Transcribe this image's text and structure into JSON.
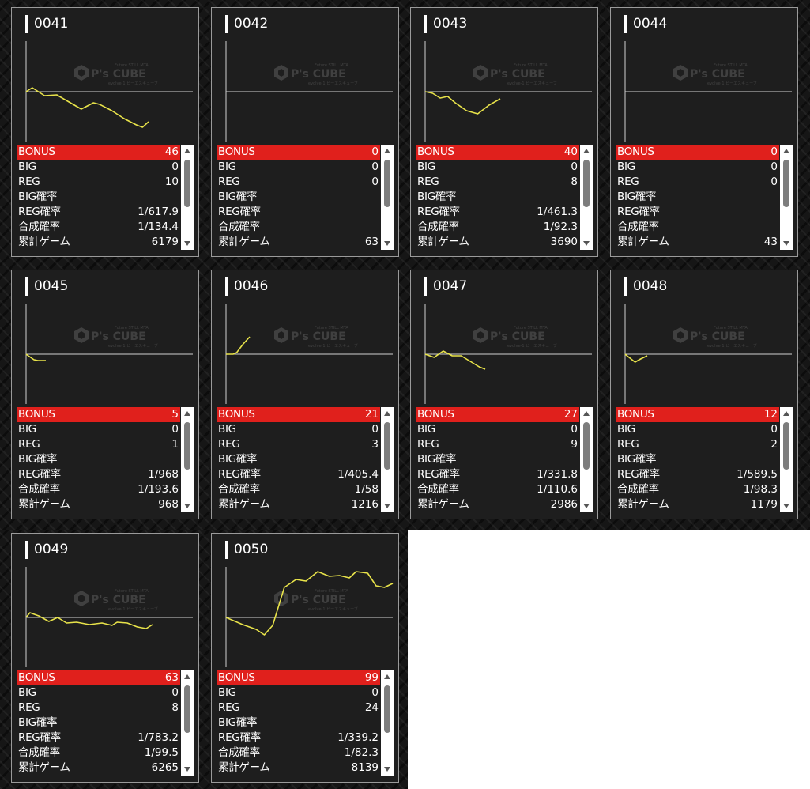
{
  "labels": {
    "bonus": "BONUS",
    "big": "BIG",
    "reg": "REG",
    "big_rate": "BIG確率",
    "reg_rate": "REG確率",
    "combined_rate": "合成確率",
    "total_games": "累計ゲーム"
  },
  "watermark": {
    "small_top": "Future STILL MTA",
    "brand": "P's CUBE",
    "small_bottom": "evolve-1 ピーエスキューブ"
  },
  "colors": {
    "accent_red": "#e0201c",
    "line_yellow": "#e8e34a",
    "card_bg": "#1e1e1e",
    "border": "#9a9a9a"
  },
  "machines": [
    {
      "id": "0041",
      "bonus": "46",
      "big": "0",
      "reg": "10",
      "big_rate": "",
      "reg_rate": "1/617.9",
      "combined_rate": "1/134.4",
      "total_games": "6179",
      "chart_data": {
        "type": "line",
        "points": [
          [
            0,
            0
          ],
          [
            0.05,
            5
          ],
          [
            0.15,
            -5
          ],
          [
            0.25,
            -4
          ],
          [
            0.35,
            -13
          ],
          [
            0.45,
            -22
          ],
          [
            0.55,
            -14
          ],
          [
            0.6,
            -16
          ],
          [
            0.7,
            -24
          ],
          [
            0.8,
            -34
          ],
          [
            0.9,
            -42
          ],
          [
            0.95,
            -45
          ],
          [
            1,
            -38
          ]
        ]
      }
    },
    {
      "id": "0042",
      "bonus": "0",
      "big": "0",
      "reg": "0",
      "big_rate": "",
      "reg_rate": "",
      "combined_rate": "",
      "total_games": "63",
      "chart_data": {
        "type": "line",
        "points": [
          [
            0,
            0
          ],
          [
            0.02,
            0
          ]
        ]
      }
    },
    {
      "id": "0043",
      "bonus": "40",
      "big": "0",
      "reg": "8",
      "big_rate": "",
      "reg_rate": "1/461.3",
      "combined_rate": "1/92.3",
      "total_games": "3690",
      "chart_data": {
        "type": "line",
        "points": [
          [
            0,
            0
          ],
          [
            0.1,
            -2
          ],
          [
            0.2,
            -8
          ],
          [
            0.3,
            -6
          ],
          [
            0.4,
            -14
          ],
          [
            0.55,
            -24
          ],
          [
            0.7,
            -28
          ],
          [
            0.85,
            -17
          ],
          [
            1,
            -9
          ]
        ]
      }
    },
    {
      "id": "0044",
      "bonus": "0",
      "big": "0",
      "reg": "0",
      "big_rate": "",
      "reg_rate": "",
      "combined_rate": "",
      "total_games": "43",
      "chart_data": {
        "type": "line",
        "points": [
          [
            0,
            0
          ],
          [
            0.02,
            0
          ]
        ]
      }
    },
    {
      "id": "0045",
      "bonus": "5",
      "big": "0",
      "reg": "1",
      "big_rate": "",
      "reg_rate": "1/968",
      "combined_rate": "1/193.6",
      "total_games": "968",
      "chart_data": {
        "type": "line",
        "points": [
          [
            0,
            0
          ],
          [
            0.4,
            -7
          ],
          [
            0.6,
            -8
          ],
          [
            1,
            -8
          ]
        ]
      }
    },
    {
      "id": "0046",
      "bonus": "21",
      "big": "0",
      "reg": "3",
      "big_rate": "",
      "reg_rate": "1/405.4",
      "combined_rate": "1/58",
      "total_games": "1216",
      "chart_data": {
        "type": "line",
        "points": [
          [
            0,
            0
          ],
          [
            0.3,
            0
          ],
          [
            0.45,
            2
          ],
          [
            0.7,
            12
          ],
          [
            1,
            22
          ]
        ]
      }
    },
    {
      "id": "0047",
      "bonus": "27",
      "big": "0",
      "reg": "9",
      "big_rate": "",
      "reg_rate": "1/331.8",
      "combined_rate": "1/110.6",
      "total_games": "2986",
      "chart_data": {
        "type": "line",
        "points": [
          [
            0,
            0
          ],
          [
            0.15,
            -4
          ],
          [
            0.3,
            4
          ],
          [
            0.45,
            -2
          ],
          [
            0.6,
            -2
          ],
          [
            0.75,
            -9
          ],
          [
            0.9,
            -16
          ],
          [
            1,
            -19
          ]
        ]
      }
    },
    {
      "id": "0048",
      "bonus": "12",
      "big": "0",
      "reg": "2",
      "big_rate": "",
      "reg_rate": "1/589.5",
      "combined_rate": "1/98.3",
      "total_games": "1179",
      "chart_data": {
        "type": "line",
        "points": [
          [
            0,
            0
          ],
          [
            0.45,
            -10
          ],
          [
            0.7,
            -6
          ],
          [
            1,
            -2
          ]
        ]
      }
    },
    {
      "id": "0049",
      "bonus": "63",
      "big": "0",
      "reg": "8",
      "big_rate": "",
      "reg_rate": "1/783.2",
      "combined_rate": "1/99.5",
      "total_games": "6265",
      "chart_data": {
        "type": "line",
        "points": [
          [
            0,
            0
          ],
          [
            0.03,
            6
          ],
          [
            0.1,
            2
          ],
          [
            0.18,
            -5
          ],
          [
            0.25,
            0
          ],
          [
            0.32,
            -7
          ],
          [
            0.4,
            -6
          ],
          [
            0.5,
            -9
          ],
          [
            0.6,
            -7
          ],
          [
            0.68,
            -10
          ],
          [
            0.72,
            -6
          ],
          [
            0.8,
            -7
          ],
          [
            0.88,
            -12
          ],
          [
            0.95,
            -14
          ],
          [
            1,
            -9
          ]
        ]
      }
    },
    {
      "id": "0050",
      "bonus": "99",
      "big": "0",
      "reg": "24",
      "big_rate": "",
      "reg_rate": "1/339.2",
      "combined_rate": "1/82.3",
      "total_games": "8139",
      "chart_data": {
        "type": "line",
        "points": [
          [
            0,
            0
          ],
          [
            0.1,
            -9
          ],
          [
            0.18,
            -15
          ],
          [
            0.23,
            -22
          ],
          [
            0.28,
            -10
          ],
          [
            0.35,
            38
          ],
          [
            0.42,
            48
          ],
          [
            0.48,
            46
          ],
          [
            0.55,
            58
          ],
          [
            0.62,
            52
          ],
          [
            0.68,
            53
          ],
          [
            0.74,
            50
          ],
          [
            0.78,
            58
          ],
          [
            0.85,
            56
          ],
          [
            0.9,
            40
          ],
          [
            0.95,
            38
          ],
          [
            1,
            43
          ]
        ]
      }
    }
  ]
}
